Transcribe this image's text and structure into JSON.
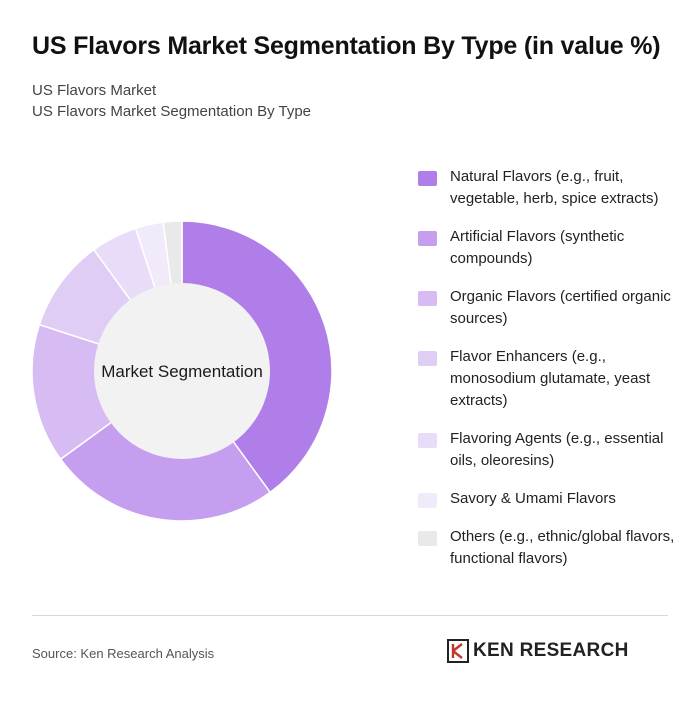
{
  "header": {
    "title": "US Flavors Market Segmentation By Type (in value %)",
    "subtitle1": "US Flavors Market",
    "subtitle2": "US Flavors Market Segmentation By Type"
  },
  "chart_data": {
    "type": "pie",
    "variant": "donut",
    "center_label": "Market Segmentation",
    "legend_position": "right",
    "categories": [
      "Natural Flavors (e.g., fruit, vegetable, herb, spice extracts)",
      "Artificial Flavors (synthetic compounds)",
      "Organic Flavors (certified organic sources)",
      "Flavor Enhancers (e.g., monosodium glutamate, yeast extracts)",
      "Flavoring Agents (e.g., essential oils, oleoresins)",
      "Savory & Umami Flavors",
      "Others (e.g., ethnic/global flavors, functional flavors)"
    ],
    "values": [
      40,
      25,
      15,
      10,
      5,
      3,
      2
    ],
    "colors": [
      "#b07ee8",
      "#c59ef0",
      "#d7bcf4",
      "#e0cdf6",
      "#e9dcf8",
      "#f1eafb",
      "#e9e9e9"
    ]
  },
  "footer": {
    "source": "Source: Ken Research Analysis",
    "brand": "KEN RESEARCH"
  }
}
